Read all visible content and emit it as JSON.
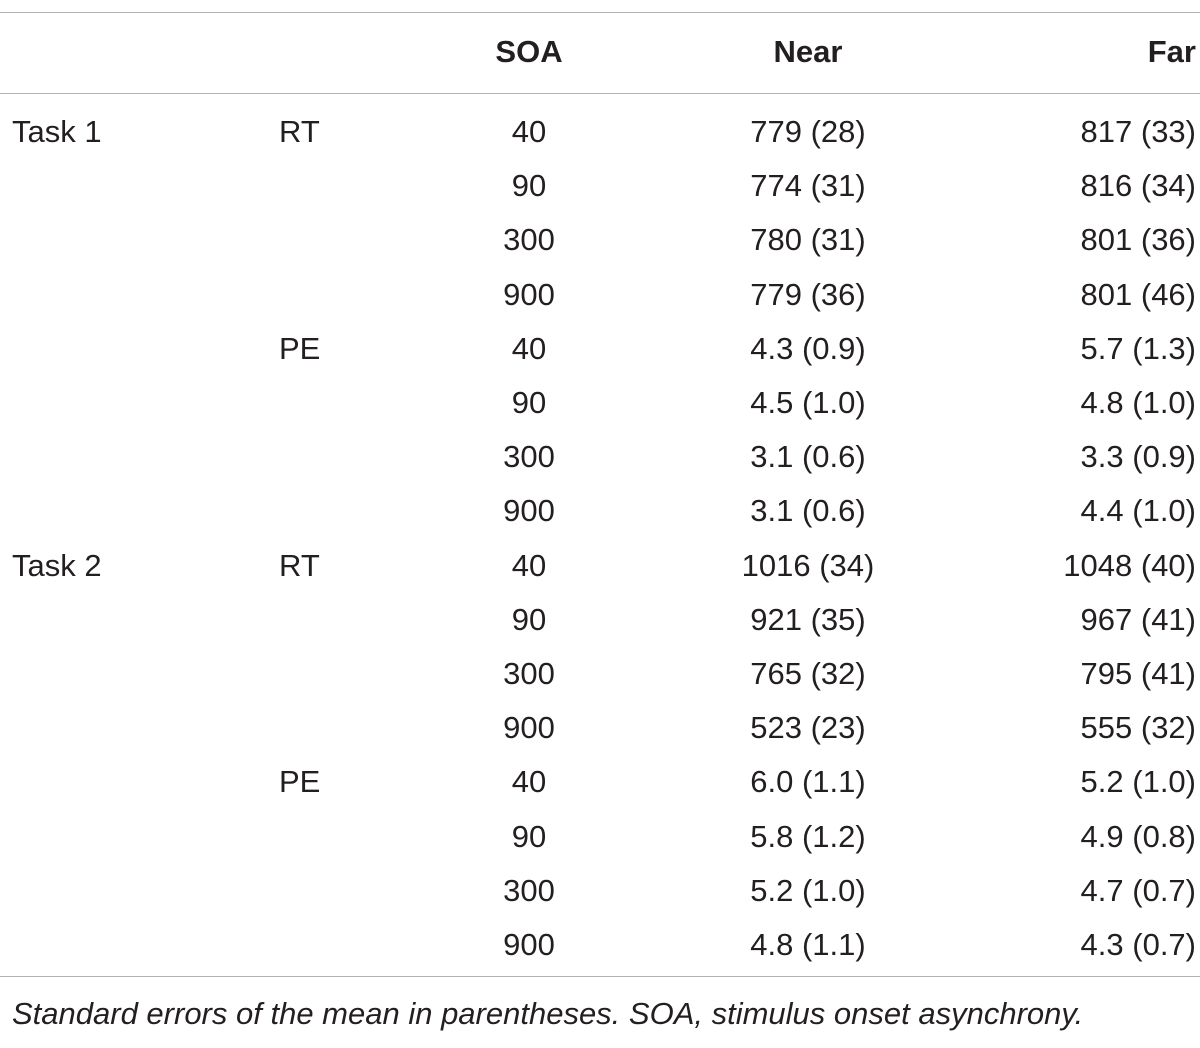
{
  "headers": {
    "task": "",
    "measure": "",
    "soa": "SOA",
    "near": "Near",
    "far": "Far"
  },
  "rows": [
    {
      "task": "Task 1",
      "measure": "RT",
      "soa": "40",
      "near": "779 (28)",
      "far": "817 (33)"
    },
    {
      "task": "",
      "measure": "",
      "soa": "90",
      "near": "774 (31)",
      "far": "816 (34)"
    },
    {
      "task": "",
      "measure": "",
      "soa": "300",
      "near": "780 (31)",
      "far": "801 (36)"
    },
    {
      "task": "",
      "measure": "",
      "soa": "900",
      "near": "779 (36)",
      "far": "801 (46)"
    },
    {
      "task": "",
      "measure": "PE",
      "soa": "40",
      "near": "4.3 (0.9)",
      "far": "5.7 (1.3)"
    },
    {
      "task": "",
      "measure": "",
      "soa": "90",
      "near": "4.5 (1.0)",
      "far": "4.8 (1.0)"
    },
    {
      "task": "",
      "measure": "",
      "soa": "300",
      "near": "3.1 (0.6)",
      "far": "3.3 (0.9)"
    },
    {
      "task": "",
      "measure": "",
      "soa": "900",
      "near": "3.1 (0.6)",
      "far": "4.4 (1.0)"
    },
    {
      "task": "Task 2",
      "measure": "RT",
      "soa": "40",
      "near": "1016 (34)",
      "far": "1048 (40)"
    },
    {
      "task": "",
      "measure": "",
      "soa": "90",
      "near": "921 (35)",
      "far": "967 (41)"
    },
    {
      "task": "",
      "measure": "",
      "soa": "300",
      "near": "765 (32)",
      "far": "795 (41)"
    },
    {
      "task": "",
      "measure": "",
      "soa": "900",
      "near": "523 (23)",
      "far": "555 (32)"
    },
    {
      "task": "",
      "measure": "PE",
      "soa": "40",
      "near": "6.0 (1.1)",
      "far": "5.2 (1.0)"
    },
    {
      "task": "",
      "measure": "",
      "soa": "90",
      "near": "5.8 (1.2)",
      "far": "4.9 (0.8)"
    },
    {
      "task": "",
      "measure": "",
      "soa": "300",
      "near": "5.2 (1.0)",
      "far": "4.7 (0.7)"
    },
    {
      "task": "",
      "measure": "",
      "soa": "900",
      "near": "4.8 (1.1)",
      "far": "4.3 (0.7)"
    }
  ],
  "footnote": "Standard errors of the mean in parentheses. SOA, stimulus onset asynchrony."
}
